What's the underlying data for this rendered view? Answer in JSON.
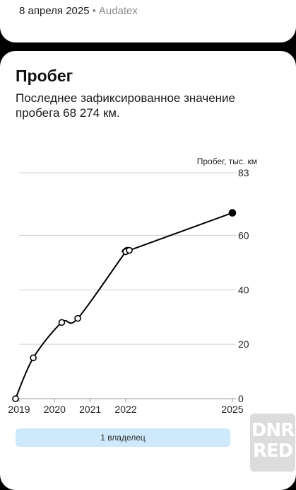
{
  "top_card": {
    "date": "8 апреля 2025",
    "separator": "•",
    "source": "Audatex"
  },
  "section": {
    "title": "Пробег",
    "description": "Последнее зафиксированное значение пробега 68 274 км."
  },
  "chart_data": {
    "type": "line",
    "ylabel": "Пробег, тыс. км",
    "ylim": [
      0,
      83
    ],
    "y_ticks": [
      0,
      20,
      40,
      60,
      83
    ],
    "x_ticks": [
      "2019",
      "2020",
      "2021",
      "2022",
      "2025"
    ],
    "x_tick_values": [
      2019.0,
      2020.0,
      2021.0,
      2022.0,
      2025.0
    ],
    "x_range": [
      2019.0,
      2025.0
    ],
    "grid": true,
    "series": [
      {
        "points": [
          {
            "x": 2018.9,
            "y": 0
          },
          {
            "x": 2019.4,
            "y": 15
          },
          {
            "x": 2020.2,
            "y": 28
          },
          {
            "x": 2020.65,
            "y": 29.5
          },
          {
            "x": 2022.0,
            "y": 54
          },
          {
            "x": 2022.1,
            "y": 54.5
          },
          {
            "x": 2025.0,
            "y": 68.274
          }
        ],
        "last_point_filled": true
      }
    ]
  },
  "owners": {
    "label": "1 владелец"
  },
  "watermark": {
    "line1": "DNR",
    "line2": "RED"
  },
  "colors": {
    "background": "#000000",
    "card": "#ffffff",
    "line": "#000000",
    "grid": "#d0d0d0",
    "owners_bar": "#cde9fb"
  }
}
